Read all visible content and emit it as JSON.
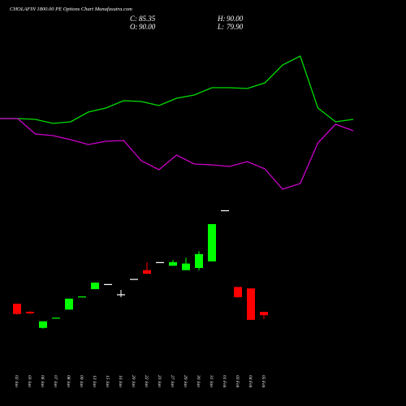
{
  "header": {
    "title": "CHOLAFIN 1800.00 PE Options Chart Munafasutra.com",
    "stats": [
      {
        "label": "C:",
        "value": "85.35"
      },
      {
        "label": "H:",
        "value": "90.00"
      },
      {
        "label": "O:",
        "value": "90.00"
      },
      {
        "label": "L:",
        "value": "79.90"
      }
    ]
  },
  "chart_data": [
    {
      "type": "line",
      "x": [
        0,
        1,
        2,
        3,
        4,
        5,
        6,
        7,
        8,
        9,
        10,
        11,
        12,
        13,
        14,
        15,
        16,
        17,
        18,
        19,
        20
      ],
      "xlim": [
        0,
        20
      ],
      "ylim": [
        0,
        200
      ],
      "series": [
        {
          "color": "#00dd00",
          "values": [
            104,
            104,
            103,
            98,
            100,
            112,
            117,
            126,
            125,
            120,
            129,
            133,
            142,
            142,
            141,
            148,
            170,
            181,
            117,
            100,
            103
          ]
        },
        {
          "color": "#cc00cc",
          "values": [
            104,
            104,
            85,
            83,
            78,
            72,
            76,
            77,
            52,
            41,
            59,
            48,
            47,
            45,
            51,
            42,
            17,
            24,
            74,
            97,
            89
          ]
        }
      ]
    },
    {
      "type": "candlestick",
      "categories": [
        "02 Jan",
        "03 Jan",
        "06 Jan",
        "07 Jan",
        "08 Jan",
        "09 Jan",
        "13 Jan",
        "15 Jan",
        "16 Jan",
        "20 Jan",
        "22 Jan",
        "23 Jan",
        "27 Jan",
        "29 Jan",
        "30 Jan",
        "31 Jan",
        "01 Feb",
        "03 Feb",
        "04 Feb",
        "05 Feb"
      ],
      "open": [
        101,
        90,
        68,
        81,
        93,
        110,
        121,
        128,
        114,
        135,
        147,
        158,
        153,
        147,
        150,
        159,
        229,
        124,
        122,
        90
      ],
      "high": [
        101,
        91,
        77,
        82,
        108,
        111,
        130,
        128,
        120,
        135,
        158,
        158,
        161,
        164,
        173,
        210,
        229,
        124,
        122,
        90
      ],
      "low": [
        86,
        87,
        67,
        81,
        93,
        110,
        121,
        128,
        110,
        135,
        142,
        158,
        153,
        147,
        147,
        159,
        229,
        109,
        79,
        79.9
      ],
      "close": [
        87,
        88,
        77,
        82,
        108,
        111,
        130,
        128,
        114,
        135,
        142,
        158,
        158,
        156,
        169,
        210,
        229,
        110,
        79,
        85.35
      ],
      "colors": {
        "up": "#00ff00",
        "down": "#ff0000",
        "flat": "#ffffff"
      },
      "ylim": [
        60,
        240
      ]
    }
  ]
}
